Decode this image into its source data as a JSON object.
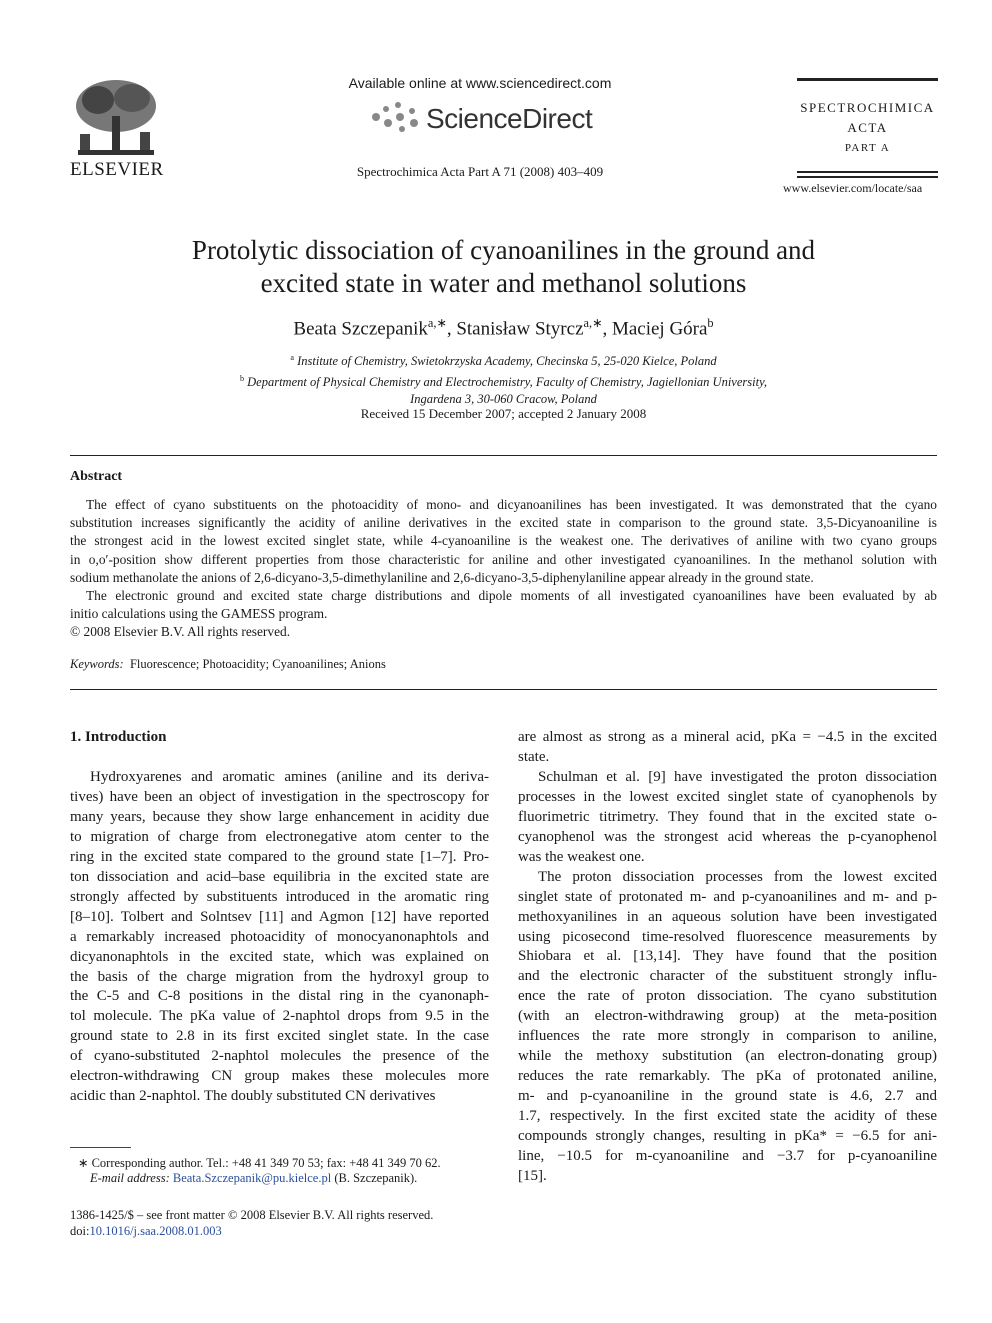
{
  "header": {
    "publisher": "ELSEVIER",
    "available_online": "Available online at www.sciencedirect.com",
    "sciencedirect": "ScienceDirect",
    "citation": "Spectrochimica Acta Part A 71 (2008) 403–409",
    "journal_name": [
      "SPECTROCHIMICA",
      "ACTA",
      "PART A"
    ],
    "journal_url": "www.elsevier.com/locate/saa"
  },
  "article": {
    "title": [
      "Protolytic dissociation of cyanoanilines in the ground and",
      "excited state in water and methanol solutions"
    ],
    "authors": [
      {
        "name": "Beata Szczepanik",
        "sup": "a,∗"
      },
      {
        "name": "Stanisław Styrcz",
        "sup": "a,∗"
      },
      {
        "name": "Maciej Góra",
        "sup": "b"
      }
    ],
    "affiliations": [
      {
        "label": "a",
        "lines": [
          "Institute of Chemistry, Swietokrzyska Academy, Checinska 5, 25-020 Kielce, Poland"
        ]
      },
      {
        "label": "b",
        "lines": [
          "Department of Physical Chemistry and Electrochemistry, Faculty of Chemistry, Jagiellonian University,",
          "Ingardena 3, 30-060 Cracow, Poland"
        ]
      }
    ],
    "received": "Received 15 December 2007; accepted 2 January 2008"
  },
  "abstract": {
    "heading": "Abstract",
    "paragraphs": [
      {
        "indent": true,
        "lines": [
          "The effect of cyano substituents on the photoacidity of mono- and dicyanoanilines has been investigated. It was demonstrated that the cyano",
          "substitution increases significantly the acidity of aniline derivatives in the excited state in comparison to the ground state. 3,5-Dicyanoaniline is",
          "the strongest acid in the lowest excited singlet state, while 4-cyanoaniline is the weakest one. The derivatives of aniline with two cyano groups",
          "in o,o′-position show different properties from those characteristic for aniline and other investigated cyanoanilines. In the methanol solution with",
          "sodium methanolate the anions of 2,6-dicyano-3,5-dimethylaniline and 2,6-dicyano-3,5-diphenylaniline appear already in the ground state."
        ]
      },
      {
        "indent": true,
        "lines": [
          "The electronic ground and excited state charge distributions and dipole moments of all investigated cyanoanilines have been evaluated by ab",
          "initio calculations using the GAMESS program."
        ]
      },
      {
        "indent": false,
        "lines": [
          "© 2008 Elsevier B.V. All rights reserved."
        ]
      }
    ],
    "keywords_label": "Keywords:",
    "keywords": "Fluorescence; Photoacidity; Cyanoanilines; Anions"
  },
  "body": {
    "section_heading": "1.  Introduction",
    "left_column": [
      {
        "indent": true,
        "lines": [
          "Hydroxyarenes and aromatic amines (aniline and its deriva-",
          "tives) have been an object of investigation in the spectroscopy for",
          "many years, because they show large enhancement in acidity due",
          "to migration of charge from electronegative atom center to the",
          "ring in the excited state compared to the ground state [1–7]. Pro-",
          "ton dissociation and acid–base equilibria in the excited state are",
          "strongly affected by substituents introduced in the aromatic ring",
          "[8–10]. Tolbert and Solntsev [11] and Agmon [12] have reported",
          "a remarkably increased photoacidity of monocyanonaphtols and",
          "dicyanonaphtols in the excited state, which was explained on",
          "the basis of the charge migration from the hydroxyl group to",
          "the C-5 and C-8 positions in the distal ring in the cyanonaph-",
          "tol molecule. The pKa value of 2-naphtol drops from 9.5 in the",
          "ground state to 2.8 in its first excited singlet state. In the case",
          "of cyano-substituted 2-naphtol molecules the presence of the",
          "electron-withdrawing CN group makes these molecules more",
          "acidic than 2-naphtol. The doubly substituted CN derivatives"
        ]
      }
    ],
    "right_column": [
      {
        "indent": false,
        "lines": [
          "are almost as strong as a mineral acid, pKa = −4.5 in the excited",
          "state."
        ]
      },
      {
        "indent": true,
        "lines": [
          "Schulman et al. [9] have investigated the proton dissociation",
          "processes in the lowest excited singlet state of cyanophenols by",
          "fluorimetric titrimetry. They found that in the excited state o-",
          "cyanophenol was the strongest acid whereas the p-cyanophenol",
          "was the weakest one."
        ]
      },
      {
        "indent": true,
        "lines": [
          "The proton dissociation processes from the lowest excited",
          "singlet state of protonated m- and p-cyanoanilines and m- and p-",
          "methoxyanilines in an aqueous solution have been investigated",
          "using picosecond time-resolved fluorescence measurements by",
          "Shiobara et al. [13,14]. They have found that the position",
          "and the electronic character of the substituent strongly influ-",
          "ence the rate of proton dissociation. The cyano substitution",
          "(with an electron-withdrawing group) at the meta-position",
          "influences the rate more strongly in comparison to aniline,",
          "while the methoxy substitution (an electron-donating group)",
          "reduces the rate remarkably. The pKa of protonated aniline,",
          "m- and p-cyanoaniline in the ground state is 4.6, 2.7 and",
          "1.7, respectively. In the first excited state the acidity of these",
          "compounds strongly changes, resulting in pKa* = −6.5 for ani-",
          "line, −10.5 for m-cyanoaniline and −3.7 for p-cyanoaniline",
          "[15]."
        ]
      }
    ]
  },
  "footnotes": {
    "corresponding": "∗  Corresponding author. Tel.: +48 41 349 70 53; fax: +48 41 349 70 62.",
    "email_label": "E-mail address:",
    "email": "Beata.Szczepanik@pu.kielce.pl",
    "email_owner": "(B. Szczepanik).",
    "front_matter": "1386-1425/$ – see front matter © 2008 Elsevier B.V. All rights reserved.",
    "doi_prefix": "doi:",
    "doi": "10.1016/j.saa.2008.01.003"
  }
}
